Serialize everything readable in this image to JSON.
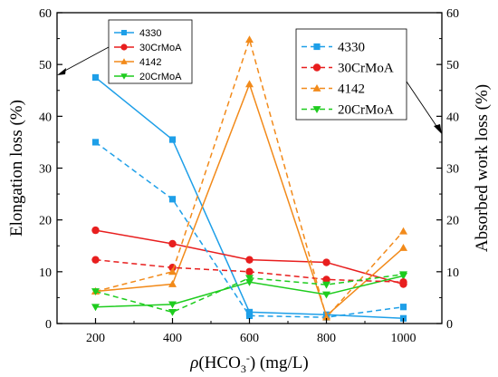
{
  "chart_data": {
    "type": "line",
    "x": [
      200,
      400,
      600,
      800,
      1000
    ],
    "xlim": [
      100,
      1100
    ],
    "xticks": [
      "200",
      "400",
      "600",
      "800",
      "1000"
    ],
    "ylim": [
      0,
      60
    ],
    "yticks": [
      "0",
      "10",
      "20",
      "30",
      "40",
      "50",
      "60"
    ],
    "y2lim": [
      0,
      60
    ],
    "y2ticks": [
      "0",
      "10",
      "20",
      "30",
      "40",
      "50",
      "60"
    ],
    "xlabel": {
      "prefix": "ρ(HCO",
      "sub": "3",
      "sup": "-",
      "suffix": ") (mg/L)"
    },
    "ylabel": "Elongation loss (%)",
    "y2label": "Absorbed work loss (%)",
    "grid": false,
    "series": [
      {
        "name": "4330",
        "axis": "left",
        "style": "solid",
        "marker": "square",
        "color": "#1E9FE8",
        "values": [
          47.5,
          35.5,
          2.2,
          1.7,
          1.0
        ]
      },
      {
        "name": "30CrMoA",
        "axis": "left",
        "style": "solid",
        "marker": "circle",
        "color": "#E81E1E",
        "values": [
          18.0,
          15.4,
          12.3,
          11.8,
          7.6
        ]
      },
      {
        "name": "4142",
        "axis": "left",
        "style": "solid",
        "marker": "triangle-up",
        "color": "#F28A1A",
        "values": [
          6.2,
          7.6,
          46.2,
          1.5,
          14.6
        ]
      },
      {
        "name": "20CrMoA",
        "axis": "left",
        "style": "solid",
        "marker": "triangle-down",
        "color": "#1ECC1E",
        "values": [
          3.2,
          3.7,
          8.0,
          5.6,
          9.2
        ]
      },
      {
        "name": "4330",
        "axis": "right",
        "style": "dashed",
        "marker": "square",
        "color": "#1E9FE8",
        "values": [
          35.0,
          24.0,
          1.5,
          1.2,
          3.2
        ]
      },
      {
        "name": "30CrMoA",
        "axis": "right",
        "style": "dashed",
        "marker": "circle",
        "color": "#E81E1E",
        "values": [
          12.3,
          10.8,
          10.0,
          8.5,
          8.0
        ]
      },
      {
        "name": "4142",
        "axis": "right",
        "style": "dashed",
        "marker": "triangle-up",
        "color": "#F28A1A",
        "values": [
          6.2,
          10.0,
          54.8,
          1.2,
          17.8
        ]
      },
      {
        "name": "20CrMoA",
        "axis": "right",
        "style": "dashed",
        "marker": "triangle-down",
        "color": "#1ECC1E",
        "values": [
          6.2,
          2.2,
          8.8,
          7.5,
          9.5
        ]
      }
    ],
    "legends": [
      {
        "position": "top-left",
        "axis": "left",
        "entries": [
          "4330",
          "30CrMoA",
          "4142",
          "20CrMoA"
        ]
      },
      {
        "position": "top-right",
        "axis": "right",
        "entries": [
          "4330",
          "30CrMoA",
          "4142",
          "20CrMoA"
        ]
      }
    ]
  }
}
